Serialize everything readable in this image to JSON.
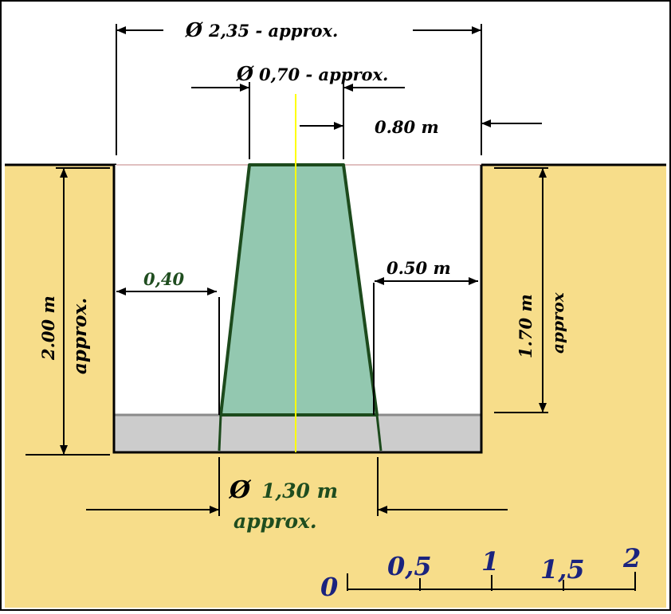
{
  "diagram": {
    "labels": {
      "top_diameter": "2,35 - approx.",
      "column_diameter": "0,70 - approx.",
      "top_offset": "0.80 m",
      "left_gap": "0,40",
      "right_gap": "0.50 m",
      "left_depth_value": "2.00 m",
      "left_depth_note": "approx.",
      "right_depth_value": "1.70 m",
      "right_depth_note": "approx",
      "base_diameter_value": "1,30 m",
      "base_diameter_note": "approx."
    },
    "diameter_symbol": "Ø",
    "scale": {
      "ticks": [
        "0",
        "0,5",
        "1",
        "1,5",
        "2"
      ]
    },
    "colors": {
      "soil": "#f7dd8a",
      "pit": "#ffffff",
      "column_fill": "#93c8b0",
      "column_edge": "#1c4a1c",
      "gravel": "#cccccc",
      "axis": "#ffff00",
      "scale_text": "#1a237e",
      "green_text": "#1f4d1f"
    }
  }
}
